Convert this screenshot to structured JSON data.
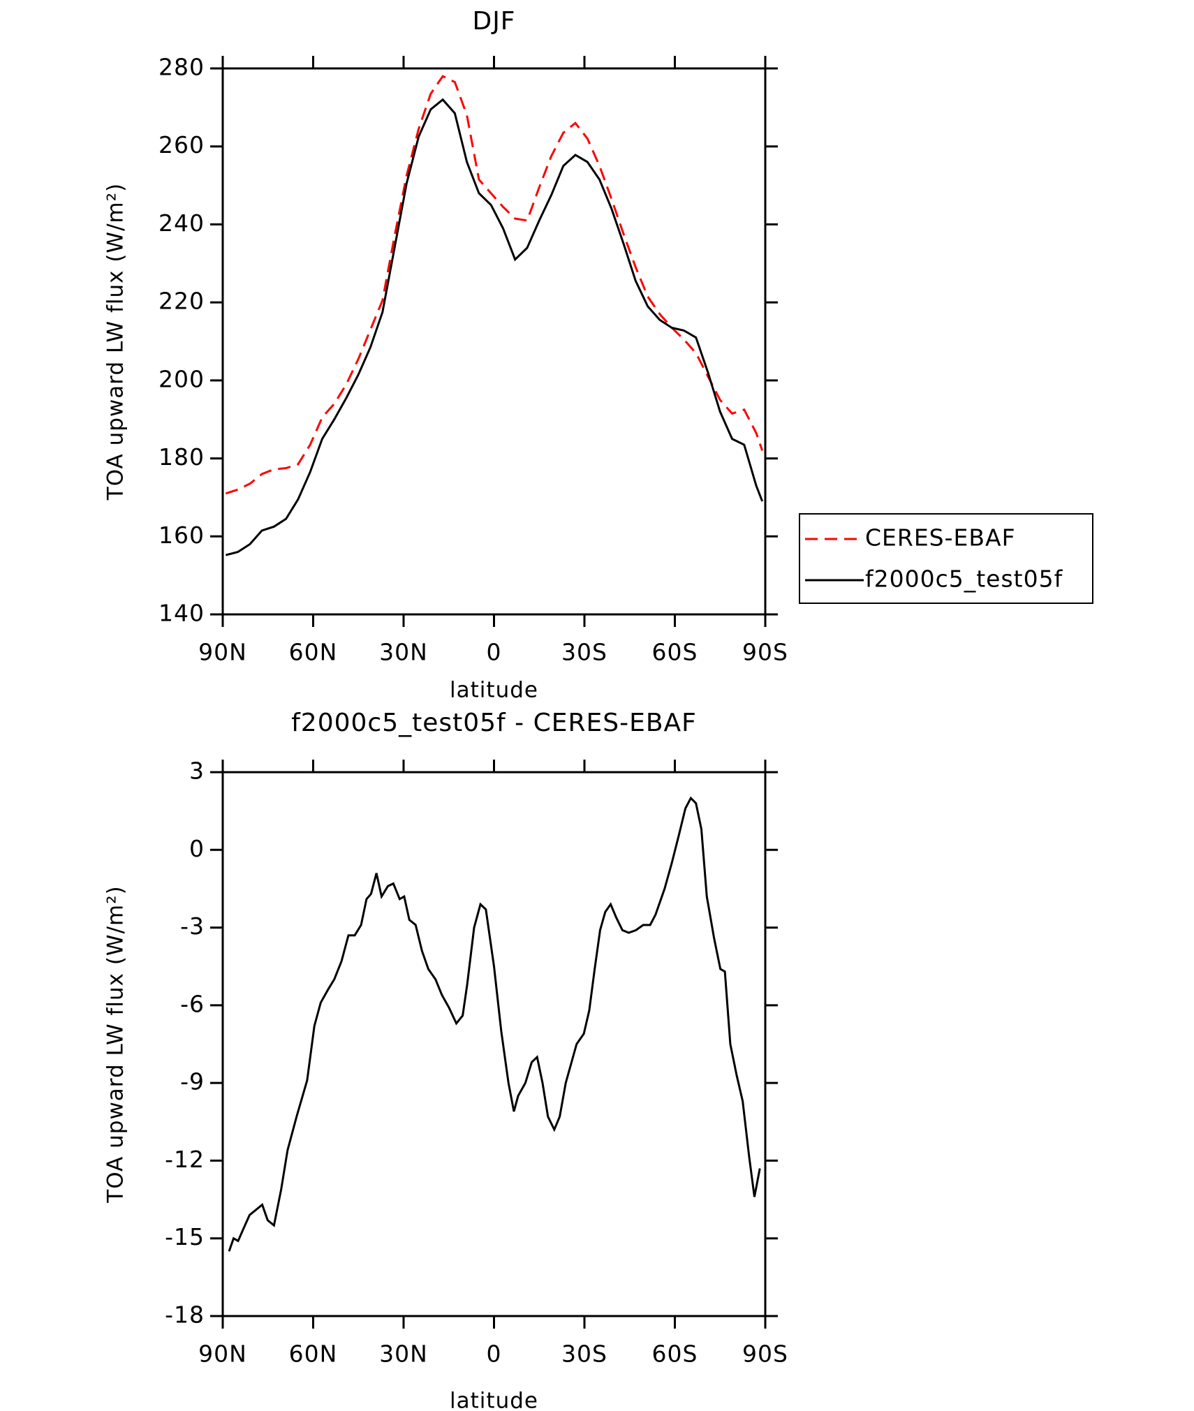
{
  "chart_data": [
    {
      "type": "line",
      "title": "DJF",
      "xlabel": "latitude",
      "ylabel": "TOA upward LW flux (W/m²)",
      "x": [
        89,
        85,
        81,
        77,
        73,
        69,
        65,
        61,
        57,
        53,
        49,
        45,
        41,
        37,
        33,
        29,
        25,
        21,
        17,
        13,
        9,
        5,
        1,
        -3,
        -7,
        -11,
        -15,
        -19,
        -23,
        -27,
        -31,
        -35,
        -39,
        -43,
        -47,
        -51,
        -55,
        -59,
        -63,
        -67,
        -71,
        -75,
        -79,
        -83,
        -87,
        -89
      ],
      "series": [
        {
          "name": "CERES-EBAF",
          "color": "#ff0000",
          "line_style": "dashed",
          "values": [
            171,
            172,
            173.5,
            176,
            177.2,
            177.5,
            178.5,
            183.5,
            190.5,
            194,
            199,
            205.5,
            213,
            220.5,
            237,
            252.5,
            264.5,
            273.5,
            278,
            276.5,
            268,
            251.5,
            248,
            244.5,
            241.5,
            241,
            249.5,
            257.5,
            263.5,
            266,
            262,
            255,
            246.5,
            237.5,
            229,
            221.5,
            217,
            213.5,
            210.5,
            207,
            201,
            195,
            191.5,
            192.5,
            186.5,
            182
          ]
        },
        {
          "name": "f2000c5_test05f",
          "color": "#000000",
          "line_style": "solid",
          "values": [
            155.2,
            156,
            158,
            161.5,
            162.5,
            164.5,
            169.5,
            176.5,
            185,
            190,
            195.5,
            201.5,
            208.5,
            217.5,
            234,
            250.5,
            262.5,
            269.5,
            272,
            268.5,
            256,
            248,
            245,
            239,
            231,
            234,
            241,
            247.5,
            255,
            257.8,
            256,
            251.5,
            244,
            235,
            225.5,
            219,
            215.5,
            213.5,
            212.8,
            211,
            202,
            192,
            185,
            183.5,
            173,
            169
          ]
        }
      ],
      "xlim": [
        90,
        -90
      ],
      "xticks": [
        {
          "value": 90,
          "label": "90N"
        },
        {
          "value": 60,
          "label": "60N"
        },
        {
          "value": 30,
          "label": "30N"
        },
        0,
        {
          "value": -30,
          "label": "30S"
        },
        {
          "value": -60,
          "label": "60S"
        },
        {
          "value": -90,
          "label": "90S"
        }
      ],
      "ylim": [
        140,
        280
      ],
      "yticks": [
        140,
        160,
        180,
        200,
        220,
        240,
        260,
        280
      ],
      "legend": "right"
    },
    {
      "type": "line",
      "title": "f2000c5_test05f - CERES-EBAF",
      "xlabel": "latitude",
      "ylabel": "TOA upward LW flux (W/m²)",
      "x": [
        87.9,
        86.4,
        84.9,
        83.4,
        81.1,
        79,
        76.9,
        75.1,
        73,
        70.6,
        68.5,
        65.5,
        62,
        59.6,
        57.5,
        55.1,
        53,
        50.6,
        48.3,
        46.2,
        44.1,
        42.3,
        40.8,
        39,
        37.3,
        35.2,
        33.4,
        31.3,
        29.8,
        28.1,
        26,
        23.9,
        21.8,
        19.4,
        17.3,
        14.9,
        12.5,
        10.4,
        8.9,
        6.6,
        4.5,
        2.7,
        0,
        -2.4,
        -4.8,
        -6.6,
        -8,
        -10.4,
        -12.5,
        -14.3,
        -16.1,
        -17.9,
        -20,
        -21.8,
        -23.8,
        -27.4,
        -29.8,
        -31.6,
        -33.4,
        -35.2,
        -36.9,
        -38.7,
        -40.5,
        -42.6,
        -44.7,
        -47.1,
        -49.5,
        -51.8,
        -53.6,
        -56.6,
        -59,
        -61.4,
        -63.5,
        -65.3,
        -67,
        -68.8,
        -70.6,
        -73,
        -75.1,
        -76.6,
        -78.4,
        -80.5,
        -82.5,
        -84.6,
        -86.4,
        -88.2
      ],
      "values": [
        -15.5,
        -15,
        -15.1,
        -14.7,
        -14.1,
        -13.9,
        -13.7,
        -14.3,
        -14.5,
        -13.1,
        -11.6,
        -10.3,
        -8.9,
        -6.8,
        -5.9,
        -5.4,
        -5,
        -4.3,
        -3.3,
        -3.3,
        -2.9,
        -1.9,
        -1.7,
        -0.9,
        -1.8,
        -1.4,
        -1.3,
        -1.9,
        -1.8,
        -2.7,
        -2.9,
        -3.9,
        -4.6,
        -5,
        -5.6,
        -6.1,
        -6.7,
        -6.4,
        -5.2,
        -3,
        -2.1,
        -2.3,
        -4.5,
        -7,
        -9,
        -10.1,
        -9.5,
        -9,
        -8.2,
        -8,
        -9,
        -10.3,
        -10.8,
        -10.3,
        -9,
        -7.5,
        -7.1,
        -6.2,
        -4.6,
        -3.1,
        -2.4,
        -2.1,
        -2.6,
        -3.1,
        -3.2,
        -3.1,
        -2.9,
        -2.9,
        -2.5,
        -1.5,
        -0.5,
        0.6,
        1.6,
        2,
        1.8,
        0.8,
        -1.8,
        -3.4,
        -4.6,
        -4.7,
        -7.5,
        -8.7,
        -9.7,
        -11.8,
        -13.4,
        -12.3
      ],
      "color": "#000000",
      "xlim": [
        90,
        -90
      ],
      "xticks": [
        {
          "value": 90,
          "label": "90N"
        },
        {
          "value": 60,
          "label": "60N"
        },
        {
          "value": 30,
          "label": "30N"
        },
        0,
        {
          "value": -30,
          "label": "30S"
        },
        {
          "value": -60,
          "label": "60S"
        },
        {
          "value": -90,
          "label": "90S"
        }
      ],
      "ylim": [
        -18,
        3
      ],
      "yticks": [
        -18,
        -15,
        -12,
        -9,
        -6,
        -3,
        0,
        3
      ]
    }
  ]
}
